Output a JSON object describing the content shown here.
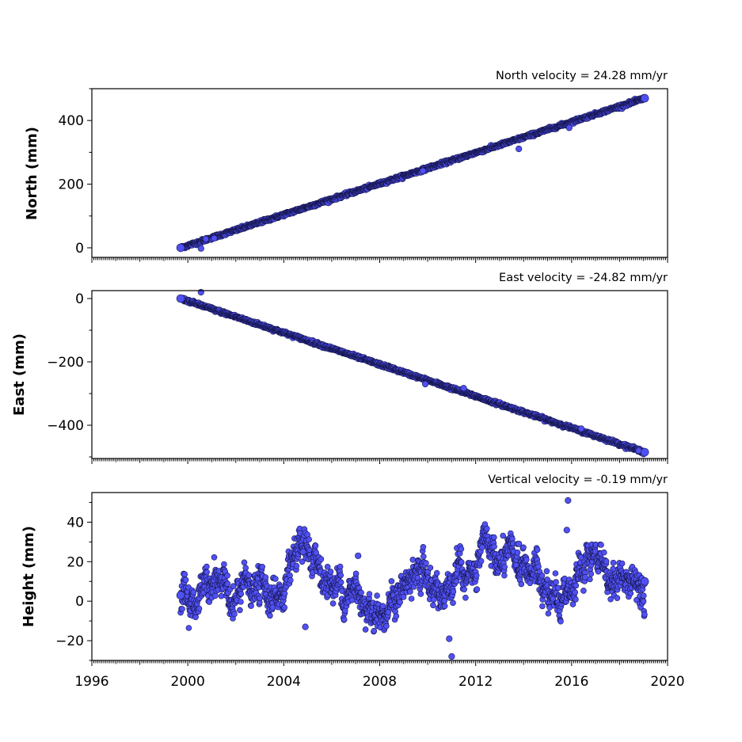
{
  "chart_data": {
    "type": "scatter",
    "xlim": [
      1996,
      2020
    ],
    "x_ticks": [
      1996,
      2000,
      2004,
      2008,
      2012,
      2016,
      2020
    ],
    "x_tick_labels": [
      "1996",
      "2000",
      "2004",
      "2008",
      "2012",
      "2016",
      "2020"
    ],
    "x_data_range": [
      1999.7,
      2019.05
    ],
    "marker_color": "#5050f5",
    "marker_edge_color": "#15154a",
    "panels": [
      {
        "id": "north",
        "title": "North velocity = 24.28 mm/yr",
        "ylabel": "North (mm)",
        "ylim": [
          -30,
          500
        ],
        "y_ticks": [
          0,
          200,
          400
        ],
        "y_tick_labels": [
          "0",
          "200",
          "400"
        ],
        "series": {
          "start": [
            1999.7,
            0
          ],
          "end": [
            2019.05,
            470
          ],
          "velocity": 24.28,
          "noise": 2.2
        },
        "outliers": [
          [
            2000.55,
            -2
          ],
          [
            2000.75,
            28
          ],
          [
            2001.1,
            30
          ],
          [
            2009.8,
            242
          ],
          [
            2013.8,
            311
          ],
          [
            2015.9,
            377
          ]
        ]
      },
      {
        "id": "east",
        "title": "East velocity = -24.82 mm/yr",
        "ylabel": "East (mm)",
        "ylim": [
          -505,
          25
        ],
        "y_ticks": [
          -400,
          -200,
          0
        ],
        "y_tick_labels": [
          "−400",
          "−200",
          "0"
        ],
        "series": {
          "start": [
            1999.7,
            0
          ],
          "end": [
            2019.05,
            -485
          ],
          "velocity": -24.82,
          "noise": 2.2
        },
        "outliers": [
          [
            2000.55,
            20
          ],
          [
            2009.9,
            -270
          ],
          [
            2011.5,
            -283
          ],
          [
            2016.4,
            -411
          ],
          [
            2019.0,
            -491
          ],
          [
            2018.8,
            -480
          ]
        ]
      },
      {
        "id": "height",
        "title": "Vertical velocity = -0.19 mm/yr",
        "ylabel": "Height (mm)",
        "ylim": [
          -30,
          55
        ],
        "y_ticks": [
          -20,
          0,
          20,
          40
        ],
        "y_tick_labels": [
          "−20",
          "0",
          "20",
          "40"
        ],
        "series": {
          "start": [
            1999.7,
            3
          ],
          "end": [
            2019.05,
            10
          ],
          "velocity": -0.19,
          "noise": 6
        },
        "outliers": [
          [
            2015.85,
            51
          ],
          [
            2015.8,
            36
          ],
          [
            2011.0,
            -28
          ],
          [
            2004.8,
            25
          ],
          [
            2007.1,
            23
          ],
          [
            2013.8,
            29
          ],
          [
            2010.9,
            -19
          ],
          [
            2004.9,
            -13
          ]
        ]
      }
    ]
  }
}
